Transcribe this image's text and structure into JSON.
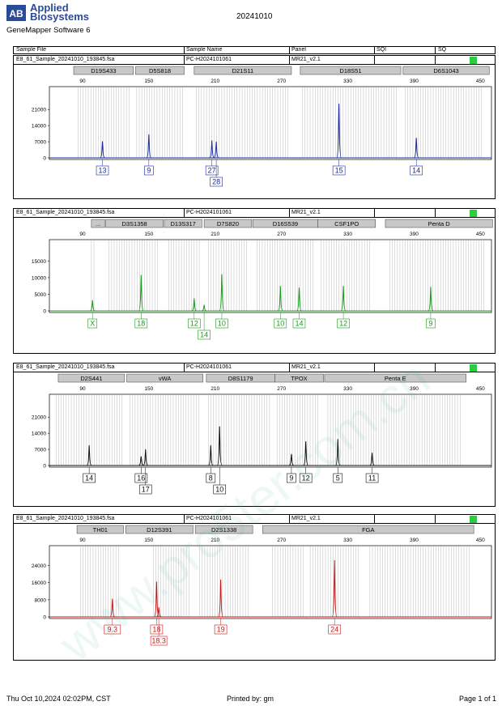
{
  "header": {
    "brand_line1": "Applied",
    "brand_line2": "Biosystems",
    "software": "GeneMapper Software 6",
    "date": "20241010"
  },
  "columns": {
    "sample_file": "Sample File",
    "sample_name": "Sample Name",
    "panel": "Panel",
    "sqi": "SQI",
    "sq": "SQ"
  },
  "footer": {
    "datetime": "Thu Oct 10,2024 02:02PM, CST",
    "printed_by": "Printed by: gm",
    "page": "Page 1 of 1"
  },
  "watermark": "www.pro5ter.com.cn",
  "status_color": "#2ecc40",
  "chart_data": [
    {
      "type": "line",
      "color": "#1a2a9c",
      "sample_file": "E8_61_Sample_20241010_193845.fsa",
      "sample_name": "PC-H2024101061",
      "panel": "MR21_v2.1",
      "xticks": [
        90,
        150,
        210,
        270,
        330,
        390,
        450
      ],
      "xlim": [
        60,
        460
      ],
      "ylim": [
        0,
        26000
      ],
      "yticks": [
        0,
        7000,
        14000,
        21000
      ],
      "grid": "vertical bins",
      "markers": [
        {
          "label": "D19S433",
          "x1": 82,
          "x2": 136
        },
        {
          "label": "D5S818",
          "x1": 138,
          "x2": 182
        },
        {
          "label": "D21S11",
          "x1": 191,
          "x2": 279
        },
        {
          "label": "D18S51",
          "x1": 287,
          "x2": 378
        },
        {
          "label": "D6S1043",
          "x1": 380,
          "x2": 458
        }
      ],
      "peaks": [
        {
          "x": 108,
          "h": 7200
        },
        {
          "x": 150,
          "h": 10200
        },
        {
          "x": 207,
          "h": 7600
        },
        {
          "x": 211,
          "h": 7000
        },
        {
          "x": 322,
          "h": 23500
        },
        {
          "x": 392,
          "h": 8700
        }
      ],
      "alleles": [
        {
          "label": "13",
          "x": 108,
          "row": 0
        },
        {
          "label": "9",
          "x": 150,
          "row": 0
        },
        {
          "label": "27",
          "x": 207,
          "row": 0
        },
        {
          "label": "28",
          "x": 211,
          "row": 1
        },
        {
          "label": "15",
          "x": 322,
          "row": 0
        },
        {
          "label": "14",
          "x": 392,
          "row": 0
        }
      ],
      "bins": [
        [
          86,
          134
        ],
        [
          139,
          181
        ],
        [
          193,
          277
        ],
        [
          289,
          376
        ],
        [
          382,
          452
        ]
      ]
    },
    {
      "type": "line",
      "color": "#1a9a1a",
      "sample_file": "E8_61_Sample_20241010_193845.fsa",
      "sample_name": "PC-H2024101061",
      "panel": "MR21_v2.1",
      "xticks": [
        90,
        150,
        210,
        270,
        330,
        390,
        450
      ],
      "xlim": [
        60,
        460
      ],
      "ylim": [
        0,
        18000
      ],
      "yticks": [
        0,
        5000,
        10000,
        15000
      ],
      "grid": "vertical bins",
      "markers": [
        {
          "label": "...",
          "x1": 98,
          "x2": 110
        },
        {
          "label": "D3S1358",
          "x1": 111,
          "x2": 163
        },
        {
          "label": "D13S317",
          "x1": 164,
          "x2": 198
        },
        {
          "label": "D7S820",
          "x1": 200,
          "x2": 243
        },
        {
          "label": "D16S539",
          "x1": 244,
          "x2": 303
        },
        {
          "label": "CSF1PO",
          "x1": 303,
          "x2": 355
        },
        {
          "label": "Penta D",
          "x1": 364,
          "x2": 461
        }
      ],
      "peaks": [
        {
          "x": 99,
          "h": 3200
        },
        {
          "x": 143,
          "h": 10800
        },
        {
          "x": 191,
          "h": 3800
        },
        {
          "x": 200,
          "h": 1800
        },
        {
          "x": 216,
          "h": 11000
        },
        {
          "x": 269,
          "h": 7500
        },
        {
          "x": 286,
          "h": 7000
        },
        {
          "x": 326,
          "h": 7500
        },
        {
          "x": 405,
          "h": 7200
        }
      ],
      "alleles": [
        {
          "label": "X",
          "x": 99,
          "row": 0
        },
        {
          "label": "18",
          "x": 143,
          "row": 0
        },
        {
          "label": "12",
          "x": 191,
          "row": 0
        },
        {
          "label": "14",
          "x": 200,
          "row": 1
        },
        {
          "label": "10",
          "x": 216,
          "row": 0
        },
        {
          "label": "10",
          "x": 269,
          "row": 0
        },
        {
          "label": "14",
          "x": 286,
          "row": 0
        },
        {
          "label": "12",
          "x": 326,
          "row": 0
        },
        {
          "label": "9",
          "x": 405,
          "row": 0
        }
      ],
      "bins": [
        [
          98,
          101
        ],
        [
          114,
          160
        ],
        [
          168,
          196
        ],
        [
          204,
          240
        ],
        [
          248,
          300
        ],
        [
          306,
          352
        ],
        [
          368,
          455
        ]
      ]
    },
    {
      "type": "line",
      "color": "#111111",
      "sample_file": "E8_61_Sample_20241010_193845.fsa",
      "sample_name": "PC-H2024101061",
      "panel": "MR21_v2.1",
      "xticks": [
        90,
        150,
        210,
        270,
        330,
        390,
        450
      ],
      "xlim": [
        60,
        460
      ],
      "ylim": [
        0,
        26000
      ],
      "yticks": [
        0,
        7000,
        14000,
        21000
      ],
      "grid": "vertical bins",
      "markers": [
        {
          "label": "D2S441",
          "x1": 68,
          "x2": 128
        },
        {
          "label": "vWA",
          "x1": 130,
          "x2": 199
        },
        {
          "label": "D8S1179",
          "x1": 202,
          "x2": 264
        },
        {
          "label": "TPOX",
          "x1": 264,
          "x2": 308
        },
        {
          "label": "Penta E",
          "x1": 309,
          "x2": 437
        }
      ],
      "peaks": [
        {
          "x": 96,
          "h": 8800
        },
        {
          "x": 143,
          "h": 4000
        },
        {
          "x": 147,
          "h": 7000
        },
        {
          "x": 206,
          "h": 8800
        },
        {
          "x": 214,
          "h": 17000
        },
        {
          "x": 279,
          "h": 5000
        },
        {
          "x": 292,
          "h": 10500
        },
        {
          "x": 321,
          "h": 11500
        },
        {
          "x": 352,
          "h": 5500
        }
      ],
      "alleles": [
        {
          "label": "14",
          "x": 96,
          "row": 0
        },
        {
          "label": "16",
          "x": 143,
          "row": 0
        },
        {
          "label": "17",
          "x": 147,
          "row": 1
        },
        {
          "label": "8",
          "x": 206,
          "row": 0
        },
        {
          "label": "10",
          "x": 214,
          "row": 1
        },
        {
          "label": "9",
          "x": 279,
          "row": 0
        },
        {
          "label": "12",
          "x": 292,
          "row": 0
        },
        {
          "label": "5",
          "x": 321,
          "row": 0
        },
        {
          "label": "11",
          "x": 352,
          "row": 0
        }
      ],
      "bins": [
        [
          66,
          126
        ],
        [
          133,
          196
        ],
        [
          204,
          260
        ],
        [
          266,
          305
        ],
        [
          312,
          432
        ]
      ]
    },
    {
      "type": "line",
      "color": "#c41a1a",
      "sample_file": "E8_61_Sample_20241010_193845.fsa",
      "sample_name": "PC-H2024101061",
      "panel": "MR21_v2.1",
      "xticks": [
        90,
        150,
        210,
        270,
        330,
        390,
        450
      ],
      "xlim": [
        60,
        460
      ],
      "ylim": [
        0,
        28000
      ],
      "yticks": [
        0,
        8000,
        16000,
        24000
      ],
      "grid": "vertical bins",
      "markers": [
        {
          "label": "TH01",
          "x1": 85,
          "x2": 127
        },
        {
          "label": "D12S391",
          "x1": 129,
          "x2": 190
        },
        {
          "label": "D2S1338",
          "x1": 192,
          "x2": 244
        },
        {
          "label": "FGA",
          "x1": 253,
          "x2": 444
        }
      ],
      "peaks": [
        {
          "x": 117,
          "h": 8500
        },
        {
          "x": 157,
          "h": 16500
        },
        {
          "x": 159,
          "h": 4500
        },
        {
          "x": 215,
          "h": 17500
        },
        {
          "x": 318,
          "h": 26500
        }
      ],
      "alleles": [
        {
          "label": "9.3",
          "x": 117,
          "row": 0
        },
        {
          "label": "18",
          "x": 157,
          "row": 0
        },
        {
          "label": "18.3",
          "x": 159,
          "row": 1
        },
        {
          "label": "19",
          "x": 215,
          "row": 0
        },
        {
          "label": "24",
          "x": 318,
          "row": 0
        }
      ],
      "bins": [
        [
          88,
          124
        ],
        [
          154,
          188
        ],
        [
          196,
          240
        ],
        [
          262,
          290
        ],
        [
          296,
          340
        ],
        [
          350,
          440
        ]
      ]
    }
  ]
}
